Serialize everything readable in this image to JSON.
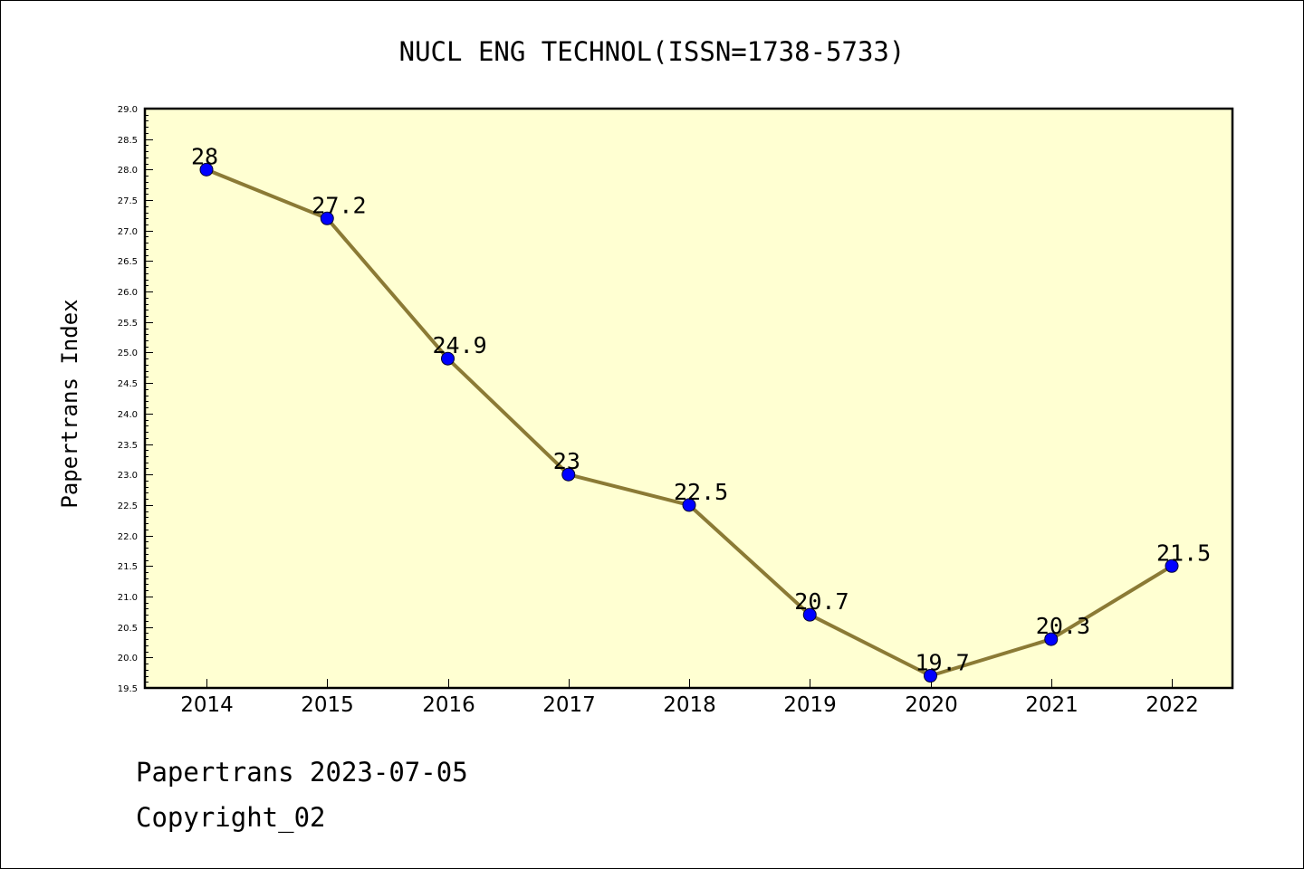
{
  "chart_data": {
    "type": "line",
    "title": "NUCL ENG TECHNOL(ISSN=1738-5733)",
    "xlabel": "",
    "ylabel": "Papertrans Index",
    "categories": [
      "2014",
      "2015",
      "2016",
      "2017",
      "2018",
      "2019",
      "2020",
      "2021",
      "2022"
    ],
    "series": [
      {
        "values": [
          28,
          27.2,
          24.9,
          23,
          22.5,
          20.7,
          19.7,
          20.3,
          21.5
        ],
        "labels": [
          "28",
          "27.2",
          "24.9",
          "23",
          "22.5",
          "20.7",
          "19.7",
          "20.3",
          "21.5"
        ]
      }
    ],
    "ylim": [
      19.5,
      29.0
    ],
    "yticks": [
      "19.5",
      "20.0",
      "20.5",
      "21.0",
      "21.5",
      "22.0",
      "22.5",
      "23.0",
      "23.5",
      "24.0",
      "24.5",
      "25.0",
      "25.5",
      "26.0",
      "26.5",
      "27.0",
      "27.5",
      "28.0",
      "28.5",
      "29.0"
    ],
    "grid": false,
    "colors": {
      "plot_background": "#ffffd2",
      "line": "#8b7a35",
      "marker": "#0000ff"
    }
  },
  "footer": {
    "line1": "Papertrans 2023-07-05",
    "line2": "Copyright_02"
  }
}
